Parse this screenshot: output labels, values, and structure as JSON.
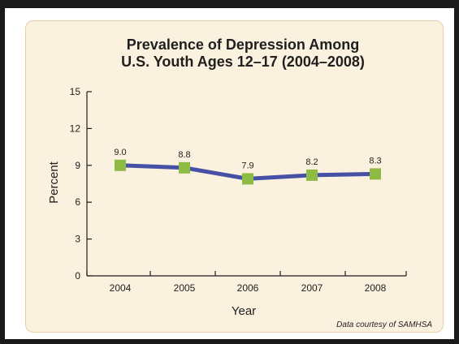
{
  "chart_data": {
    "type": "line",
    "title": [
      "Prevalence of Depression Among",
      "U.S. Youth Ages 12–17 (2004–2008)"
    ],
    "xlabel": "Year",
    "ylabel": "Percent",
    "categories": [
      "2004",
      "2005",
      "2006",
      "2007",
      "2008"
    ],
    "series": [
      {
        "values": [
          9.0,
          8.8,
          7.9,
          8.2,
          8.3
        ],
        "labels": [
          "9.0",
          "8.8",
          "7.9",
          "8.2",
          "8.3"
        ]
      }
    ],
    "ylim": [
      0,
      15
    ],
    "yticks": [
      "0",
      "3",
      "6",
      "9",
      "12",
      "15"
    ],
    "grid": false,
    "line_color": "#4650a4",
    "marker_color": "#8dbb43",
    "panel_color": "#fbf1df",
    "annotation": "Data courtesy of SAMHSA"
  }
}
